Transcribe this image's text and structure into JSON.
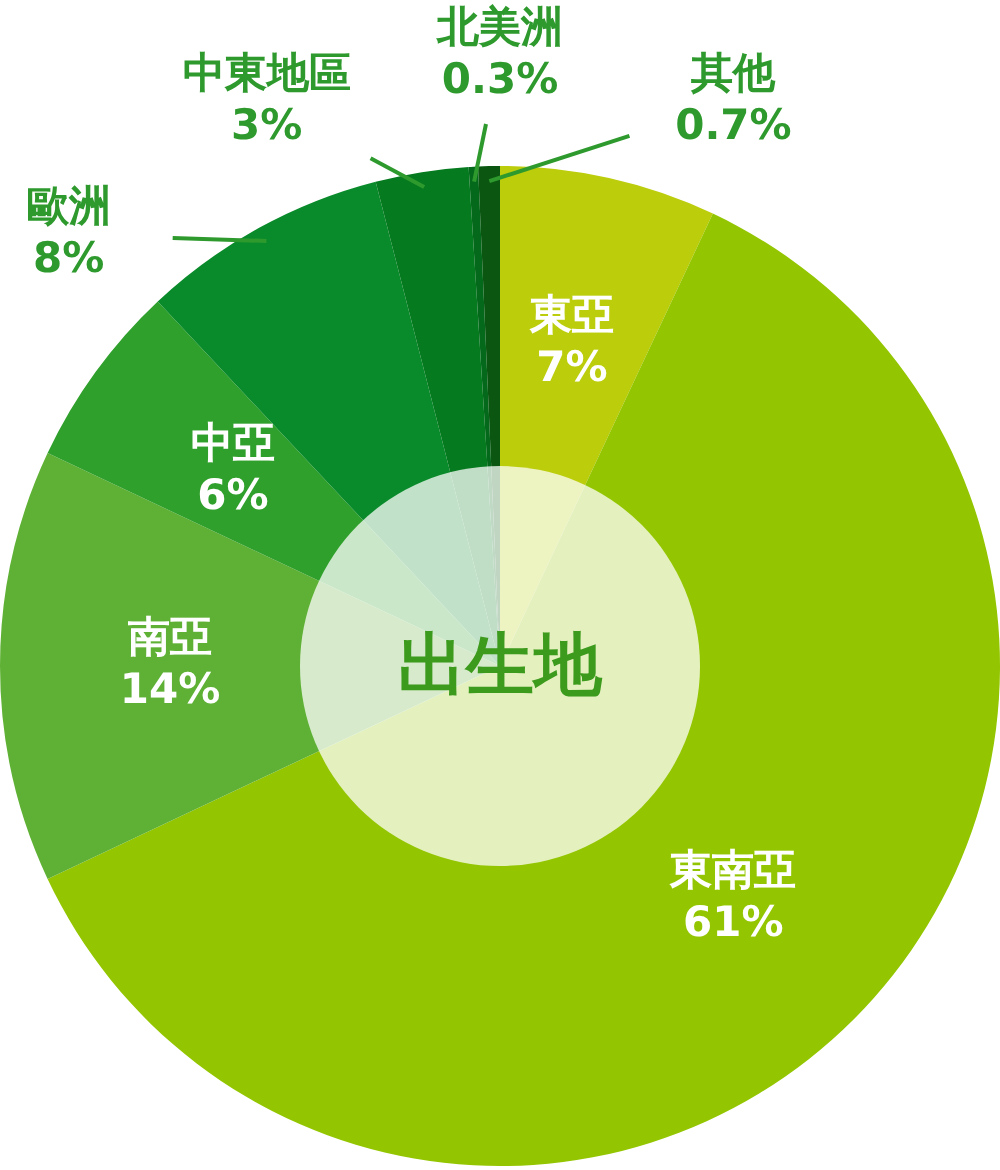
{
  "chart_data": {
    "type": "donut",
    "title": "出生地",
    "categories": [
      "東亞",
      "東南亞",
      "南亞",
      "中亞",
      "歐洲",
      "中東地區",
      "北美洲",
      "其他"
    ],
    "values": [
      7,
      61,
      14,
      6,
      8,
      3,
      0.3,
      0.7
    ],
    "colors": [
      "#bccd0c",
      "#93c600",
      "#5fb135",
      "#2fa02b",
      "#0a8b2b",
      "#067a1f",
      "#04691a",
      "#0b5712"
    ],
    "value_labels": [
      "7%",
      "61%",
      "14%",
      "6%",
      "8%",
      "3%",
      "0.3%",
      "0.7%"
    ],
    "legend": false
  }
}
